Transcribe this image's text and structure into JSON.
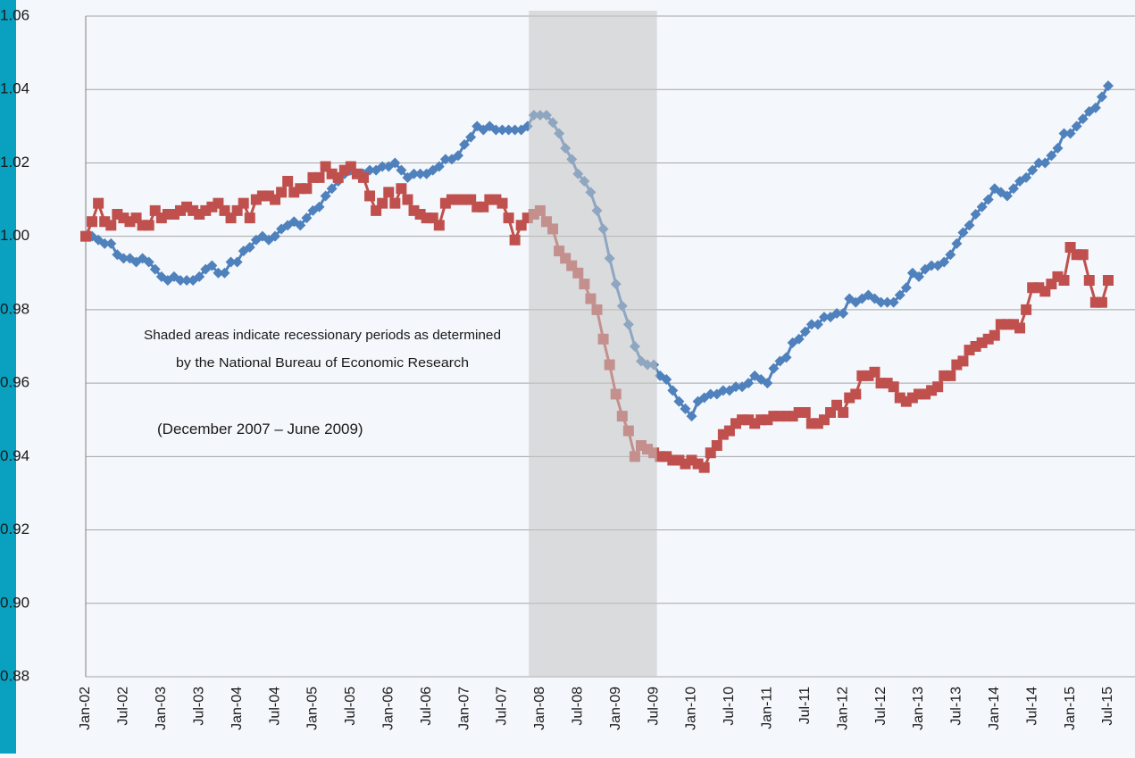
{
  "chart_data": {
    "type": "line",
    "categories": [
      "Jan-02",
      null,
      null,
      null,
      null,
      null,
      "Jul-02",
      null,
      null,
      null,
      null,
      null,
      "Jan-03",
      null,
      null,
      null,
      null,
      null,
      "Jul-03",
      null,
      null,
      null,
      null,
      null,
      "Jan-04",
      null,
      null,
      null,
      null,
      null,
      "Jul-04",
      null,
      null,
      null,
      null,
      null,
      "Jan-05",
      null,
      null,
      null,
      null,
      null,
      "Jul-05",
      null,
      null,
      null,
      null,
      null,
      "Jan-06",
      null,
      null,
      null,
      null,
      null,
      "Jul-06",
      null,
      null,
      null,
      null,
      null,
      "Jan-07",
      null,
      null,
      null,
      null,
      null,
      "Jul-07",
      null,
      null,
      null,
      null,
      null,
      "Jan-08",
      null,
      null,
      null,
      null,
      null,
      "Jul-08",
      null,
      null,
      null,
      null,
      null,
      "Jan-09",
      null,
      null,
      null,
      null,
      null,
      "Jul-09",
      null,
      null,
      null,
      null,
      null,
      "Jan-10",
      null,
      null,
      null,
      null,
      null,
      "Jul-10",
      null,
      null,
      null,
      null,
      null,
      "Jan-11",
      null,
      null,
      null,
      null,
      null,
      "Jul-11",
      null,
      null,
      null,
      null,
      null,
      "Jan-12",
      null,
      null,
      null,
      null,
      null,
      "Jul-12",
      null,
      null,
      null,
      null,
      null,
      "Jan-13",
      null,
      null,
      null,
      null,
      null,
      "Jul-13",
      null,
      null,
      null,
      null,
      null,
      "Jan-14",
      null,
      null,
      null,
      null,
      null,
      "Jul-14",
      null,
      null,
      null,
      null,
      null,
      "Jan-15",
      null,
      null,
      null,
      null,
      null,
      "Jul-15"
    ],
    "series": [
      {
        "color": "#4f81bd",
        "marker": "diamond",
        "values": [
          1.0,
          1.0,
          0.999,
          0.998,
          0.998,
          0.995,
          0.994,
          0.994,
          0.993,
          0.994,
          0.993,
          0.991,
          0.989,
          0.988,
          0.989,
          0.988,
          0.988,
          0.988,
          0.989,
          0.991,
          0.992,
          0.99,
          0.99,
          0.993,
          0.993,
          0.996,
          0.997,
          0.999,
          1.0,
          0.999,
          1.0,
          1.002,
          1.003,
          1.004,
          1.003,
          1.005,
          1.007,
          1.008,
          1.011,
          1.013,
          1.015,
          1.017,
          1.018,
          1.017,
          1.017,
          1.018,
          1.018,
          1.019,
          1.019,
          1.02,
          1.018,
          1.016,
          1.017,
          1.017,
          1.017,
          1.018,
          1.019,
          1.021,
          1.021,
          1.022,
          1.025,
          1.027,
          1.03,
          1.029,
          1.03,
          1.029,
          1.029,
          1.029,
          1.029,
          1.029,
          1.03,
          1.033,
          1.033,
          1.033,
          1.031,
          1.028,
          1.024,
          1.021,
          1.017,
          1.015,
          1.012,
          1.007,
          1.002,
          0.994,
          0.987,
          0.981,
          0.976,
          0.97,
          0.966,
          0.965,
          0.965,
          0.962,
          0.961,
          0.958,
          0.955,
          0.953,
          0.951,
          0.955,
          0.956,
          0.957,
          0.957,
          0.958,
          0.958,
          0.959,
          0.959,
          0.96,
          0.962,
          0.961,
          0.96,
          0.964,
          0.966,
          0.967,
          0.971,
          0.972,
          0.974,
          0.976,
          0.976,
          0.978,
          0.978,
          0.979,
          0.979,
          0.983,
          0.982,
          0.983,
          0.984,
          0.983,
          0.982,
          0.982,
          0.982,
          0.984,
          0.986,
          0.99,
          0.989,
          0.991,
          0.992,
          0.992,
          0.993,
          0.995,
          0.998,
          1.001,
          1.003,
          1.006,
          1.008,
          1.01,
          1.013,
          1.012,
          1.011,
          1.013,
          1.015,
          1.016,
          1.018,
          1.02,
          1.02,
          1.022,
          1.024,
          1.028,
          1.028,
          1.03,
          1.032,
          1.034,
          1.035,
          1.038,
          1.041
        ]
      },
      {
        "color": "#c0504d",
        "marker": "square",
        "values": [
          1.0,
          1.004,
          1.009,
          1.004,
          1.003,
          1.006,
          1.005,
          1.004,
          1.005,
          1.003,
          1.003,
          1.007,
          1.005,
          1.006,
          1.006,
          1.007,
          1.008,
          1.007,
          1.006,
          1.007,
          1.008,
          1.009,
          1.007,
          1.005,
          1.007,
          1.009,
          1.005,
          1.01,
          1.011,
          1.011,
          1.01,
          1.012,
          1.015,
          1.012,
          1.013,
          1.013,
          1.016,
          1.016,
          1.019,
          1.017,
          1.016,
          1.018,
          1.019,
          1.017,
          1.016,
          1.011,
          1.007,
          1.009,
          1.012,
          1.009,
          1.013,
          1.01,
          1.007,
          1.006,
          1.005,
          1.005,
          1.003,
          1.009,
          1.01,
          1.01,
          1.01,
          1.01,
          1.008,
          1.008,
          1.01,
          1.01,
          1.009,
          1.005,
          0.999,
          1.003,
          1.005,
          1.006,
          1.007,
          1.004,
          1.002,
          0.996,
          0.994,
          0.992,
          0.99,
          0.987,
          0.983,
          0.98,
          0.972,
          0.965,
          0.957,
          0.951,
          0.947,
          0.94,
          0.943,
          0.942,
          0.941,
          0.94,
          0.94,
          0.939,
          0.939,
          0.938,
          0.939,
          0.938,
          0.937,
          0.941,
          0.943,
          0.946,
          0.947,
          0.949,
          0.95,
          0.95,
          0.949,
          0.95,
          0.95,
          0.951,
          0.951,
          0.951,
          0.951,
          0.952,
          0.952,
          0.949,
          0.949,
          0.95,
          0.952,
          0.954,
          0.952,
          0.956,
          0.957,
          0.962,
          0.962,
          0.963,
          0.96,
          0.96,
          0.959,
          0.956,
          0.955,
          0.956,
          0.957,
          0.957,
          0.958,
          0.959,
          0.962,
          0.962,
          0.965,
          0.966,
          0.969,
          0.97,
          0.971,
          0.972,
          0.973,
          0.976,
          0.976,
          0.976,
          0.975,
          0.98,
          0.986,
          0.986,
          0.985,
          0.987,
          0.989,
          0.988,
          0.997,
          0.995,
          0.995,
          0.988,
          0.982,
          0.982,
          0.988
        ]
      }
    ],
    "ylim": [
      0.88,
      1.06
    ],
    "yticks": [
      0.88,
      {
        "value": 0.9,
        "label": "0.90"
      },
      0.92,
      0.94,
      0.96,
      0.98,
      {
        "value": 1.0,
        "label": "1.00"
      },
      1.02,
      1.04,
      1.06
    ],
    "grid": true,
    "shade_x": [
      70.2,
      90.5
    ],
    "shade_color": "#c4c4c4",
    "annotations": [
      "Shaded areas indicate recessionary periods as determined",
      "by the National Bureau of Economic Research",
      "(December 2007 – June 2009)"
    ]
  }
}
